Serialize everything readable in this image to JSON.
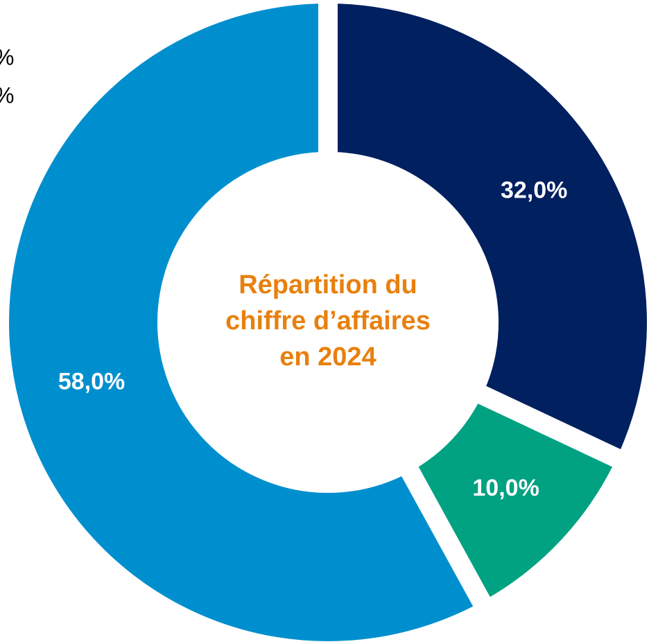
{
  "chart_data": {
    "type": "donut",
    "title": [
      "Répartition du",
      "chiffre d’affaires",
      "en 2024"
    ],
    "title_color": "#e8800e",
    "categories": [
      null,
      null,
      null
    ],
    "series": [
      {
        "values": [
          32.0,
          10.0,
          58.0
        ],
        "value_labels": [
          "32,0%",
          "10,0%",
          "58,0%"
        ],
        "colors": [
          "#002060",
          "#00a282",
          "#008fce"
        ]
      }
    ],
    "annotations": [
      "%",
      "%"
    ]
  }
}
